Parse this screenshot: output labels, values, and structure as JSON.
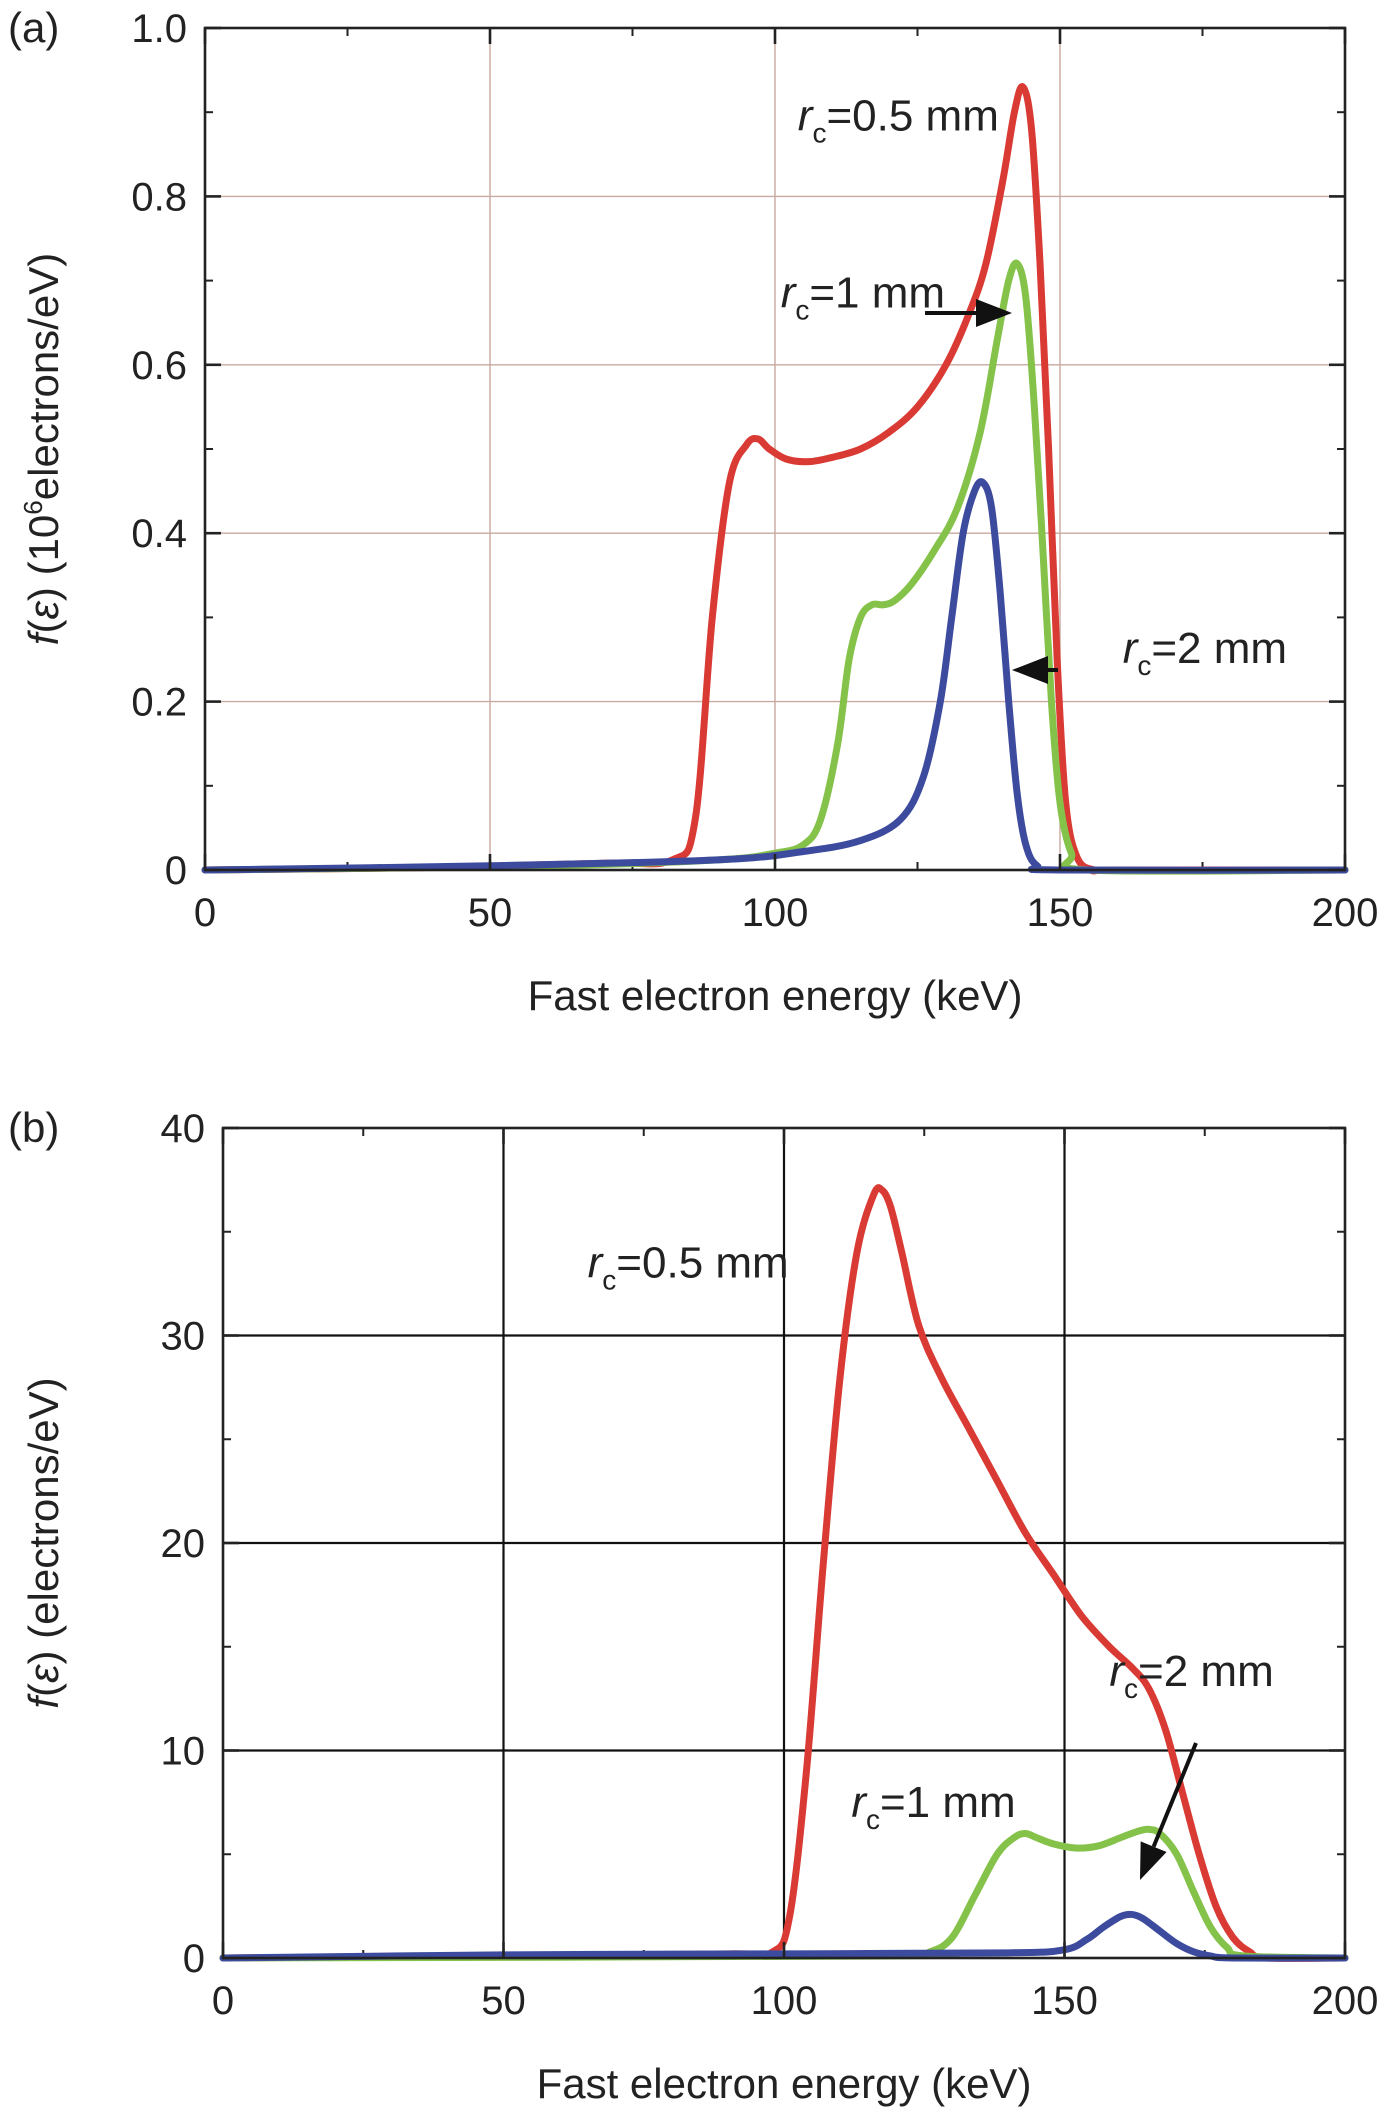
{
  "chart_data": [
    {
      "type": "line",
      "panel_label": "(a)",
      "xlabel": "Fast electron energy (keV)",
      "ylabel_parts": [
        "f",
        "(",
        "ε",
        ") (10",
        "6",
        "electrons/eV)"
      ],
      "xlim": [
        0,
        200
      ],
      "ylim": [
        0,
        1.0
      ],
      "xticks": [
        0,
        50,
        100,
        150,
        200
      ],
      "xtick_labels": [
        "0",
        "50",
        "100",
        "150",
        "200"
      ],
      "yticks": [
        0,
        0.2,
        0.4,
        0.6,
        0.8,
        1.0
      ],
      "ytick_labels": [
        "0",
        "0.2",
        "0.4",
        "0.6",
        "0.8",
        "1.0"
      ],
      "grid": true,
      "grid_color": "#c9a9a0",
      "series": [
        {
          "color": "#d93a34",
          "x": [
            0,
            40,
            70,
            82,
            86,
            89,
            92,
            95,
            97,
            99,
            102,
            106,
            110,
            115,
            120,
            125,
            130,
            134,
            137,
            140,
            142,
            143.5,
            145,
            146.5,
            148,
            149.5,
            151,
            153,
            156,
            160,
            200
          ],
          "y": [
            0,
            0.003,
            0.008,
            0.012,
            0.06,
            0.3,
            0.46,
            0.505,
            0.512,
            0.5,
            0.488,
            0.485,
            0.49,
            0.5,
            0.52,
            0.55,
            0.6,
            0.66,
            0.72,
            0.82,
            0.9,
            0.93,
            0.88,
            0.72,
            0.5,
            0.25,
            0.08,
            0.015,
            0,
            0,
            0
          ]
        },
        {
          "color": "#84c24a",
          "x": [
            0,
            60,
            90,
            100,
            105,
            108,
            111,
            113,
            115,
            117,
            119,
            121,
            124,
            128,
            132,
            136,
            139,
            141,
            142.5,
            144,
            145.5,
            147,
            148.5,
            150,
            152,
            155,
            200
          ],
          "y": [
            0,
            0.005,
            0.012,
            0.02,
            0.03,
            0.06,
            0.15,
            0.25,
            0.3,
            0.315,
            0.315,
            0.32,
            0.34,
            0.38,
            0.43,
            0.52,
            0.63,
            0.7,
            0.72,
            0.68,
            0.55,
            0.38,
            0.2,
            0.08,
            0.02,
            0,
            0
          ]
        },
        {
          "color": "#3d4b9e",
          "x": [
            0,
            50,
            90,
            105,
            115,
            122,
            126,
            129,
            131,
            133,
            135,
            136.5,
            138,
            139.5,
            141,
            142.5,
            144,
            146,
            150,
            200
          ],
          "y": [
            0,
            0.005,
            0.012,
            0.022,
            0.035,
            0.06,
            0.11,
            0.2,
            0.3,
            0.4,
            0.45,
            0.46,
            0.43,
            0.33,
            0.2,
            0.09,
            0.03,
            0.005,
            0,
            0
          ]
        }
      ],
      "annotations": [
        {
          "r": "r",
          "sub": "c",
          "value": "=0.5 mm",
          "x": 104,
          "y": 0.878
        },
        {
          "r": "r",
          "sub": "c",
          "value": "=1 mm",
          "x": 101,
          "y": 0.668
        },
        {
          "r": "r",
          "sub": "c",
          "value": "=2 mm",
          "x": 161,
          "y": 0.246
        }
      ]
    },
    {
      "type": "line",
      "panel_label": "(b)",
      "xlabel": "Fast electron energy (keV)",
      "ylabel_parts": [
        "f",
        "(",
        "ε",
        ") (electrons/eV)"
      ],
      "xlim": [
        0,
        200
      ],
      "ylim": [
        0,
        40
      ],
      "xticks": [
        0,
        50,
        100,
        150,
        200
      ],
      "xtick_labels": [
        "0",
        "50",
        "100",
        "150",
        "200"
      ],
      "yticks": [
        0,
        10,
        20,
        30,
        40
      ],
      "ytick_labels": [
        "0",
        "10",
        "20",
        "30",
        "40"
      ],
      "grid": true,
      "grid_color": "#111111",
      "series": [
        {
          "color": "#d93a34",
          "x": [
            0,
            50,
            90,
            98,
            101,
            104,
            107,
            110,
            113,
            116,
            117.5,
            119,
            121,
            124,
            128,
            133,
            138,
            143,
            148,
            153,
            158,
            162,
            165,
            168,
            171,
            174,
            177,
            180,
            183,
            186,
            200
          ],
          "y": [
            0,
            0.1,
            0.2,
            0.3,
            2,
            9,
            19,
            28,
            34,
            36.8,
            37,
            36.2,
            34,
            30.5,
            28,
            25.5,
            23,
            20.5,
            18.5,
            16.5,
            15,
            14,
            13,
            11,
            8,
            5,
            2.5,
            1,
            0.3,
            0,
            0
          ]
        },
        {
          "color": "#84c24a",
          "x": [
            0,
            120,
            126,
            130,
            134,
            138,
            141,
            143,
            145,
            148,
            152,
            156,
            160,
            163,
            165,
            167,
            170,
            173,
            176,
            179,
            182,
            200
          ],
          "y": [
            0,
            0.1,
            0.3,
            1,
            3,
            5,
            5.8,
            6,
            5.8,
            5.5,
            5.3,
            5.4,
            5.8,
            6.1,
            6.2,
            6.0,
            5.0,
            3.2,
            1.5,
            0.5,
            0.1,
            0
          ]
        },
        {
          "color": "#3d4b9e",
          "x": [
            0,
            50,
            100,
            140,
            150,
            154,
            157,
            160,
            162,
            164,
            167,
            170,
            173,
            176,
            180,
            200
          ],
          "y": [
            0,
            0.15,
            0.2,
            0.25,
            0.4,
            0.9,
            1.5,
            2.0,
            2.1,
            1.9,
            1.3,
            0.7,
            0.3,
            0.1,
            0,
            0
          ]
        }
      ],
      "annotations": [
        {
          "r": "r",
          "sub": "c",
          "value": "=0.5 mm",
          "x": 65,
          "y": 32.8
        },
        {
          "r": "r",
          "sub": "c",
          "value": "=1 mm",
          "x": 112,
          "y": 6.8
        },
        {
          "r": "r",
          "sub": "c",
          "value": "=2 mm",
          "x": 158,
          "y": 13.1
        }
      ]
    }
  ]
}
